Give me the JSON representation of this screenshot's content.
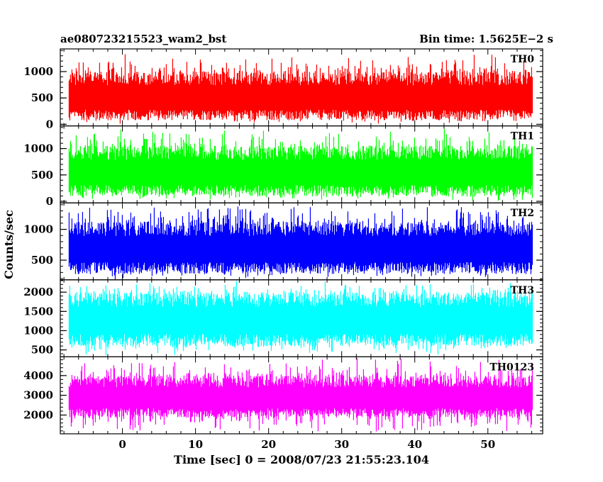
{
  "header": {
    "title": "ae080723215523_wam2_bst",
    "bin_time": "Bin time: 1.5625E−2 s"
  },
  "chart_data": {
    "type": "line",
    "title": "ae080723215523_wam2_bst",
    "subtitle": "Bin time: 1.5625E−2 s",
    "xlabel": "Time [sec] 0 = 2008/07/23 21:55:23.104",
    "ylabel": "Counts/sec",
    "xlim": [
      -8.5,
      57.5
    ],
    "data_xrange": [
      -7.3,
      56.1
    ],
    "x_ticks": [
      0,
      10,
      20,
      30,
      40,
      50
    ],
    "grid": false,
    "panels": [
      {
        "name": "TH0",
        "color": "#ff0000",
        "ylim": [
          -30,
          1430
        ],
        "y_ticks": [
          0,
          500,
          1000
        ],
        "summary": {
          "typical_low": 80,
          "typical_high": 1000,
          "min": 0,
          "max": 1400,
          "mean": 520
        }
      },
      {
        "name": "TH1",
        "color": "#00ff00",
        "ylim": [
          -30,
          1430
        ],
        "y_ticks": [
          0,
          500,
          1000
        ],
        "summary": {
          "typical_low": 100,
          "typical_high": 1050,
          "min": 0,
          "max": 1420,
          "mean": 560
        }
      },
      {
        "name": "TH2",
        "color": "#0000ff",
        "ylim": [
          180,
          1430
        ],
        "y_ticks": [
          500,
          1000
        ],
        "summary": {
          "typical_low": 280,
          "typical_high": 1120,
          "min": 180,
          "max": 1430,
          "mean": 700
        }
      },
      {
        "name": "TH3",
        "color": "#00ffff",
        "ylim": [
          320,
          2320
        ],
        "y_ticks": [
          500,
          1000,
          1500,
          2000
        ],
        "summary": {
          "typical_low": 600,
          "typical_high": 2000,
          "min": 330,
          "max": 2320,
          "mean": 1300
        }
      },
      {
        "name": "TH0123",
        "color": "#ff00ff",
        "ylim": [
          1050,
          4950
        ],
        "y_ticks": [
          2000,
          3000,
          4000
        ],
        "summary": {
          "typical_low": 1900,
          "typical_high": 4000,
          "min": 1050,
          "max": 4950,
          "mean": 2900
        }
      }
    ]
  }
}
